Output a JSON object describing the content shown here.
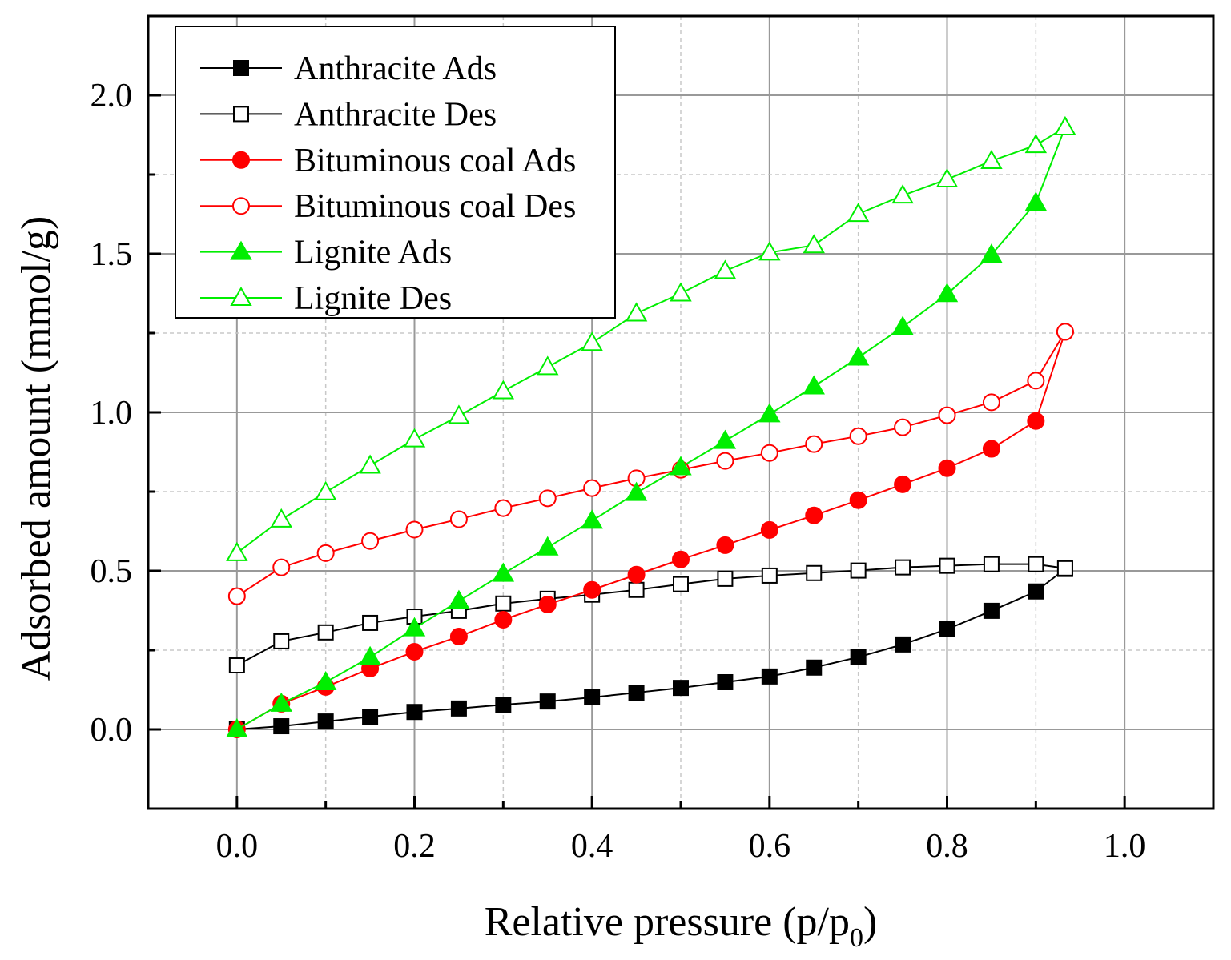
{
  "chart_data": {
    "type": "line",
    "title": "",
    "xlabel": "Relative pressure (p/p",
    "xlabel_sub": "0",
    "xlabel_end": ")",
    "ylabel": "Adsorbed amount (mmol/g)",
    "xlim": [
      -0.1,
      1.1
    ],
    "ylim": [
      -0.25,
      2.25
    ],
    "xticks": [
      0.0,
      0.2,
      0.4,
      0.6,
      0.8,
      1.0
    ],
    "xtick_labels": [
      "0.0",
      "0.2",
      "0.4",
      "0.6",
      "0.8",
      "1.0"
    ],
    "yticks": [
      0.0,
      0.5,
      1.0,
      1.5,
      2.0
    ],
    "ytick_labels": [
      "0.0",
      "0.5",
      "1.0",
      "1.5",
      "2.0"
    ],
    "grid": true,
    "legend_position": "top-left",
    "x": [
      0,
      0.05,
      0.1,
      0.15,
      0.2,
      0.25,
      0.3,
      0.35,
      0.4,
      0.45,
      0.5,
      0.55,
      0.6,
      0.65,
      0.7,
      0.75,
      0.8,
      0.85,
      0.9,
      0.933
    ],
    "series": [
      {
        "name": "Anthracite Ads",
        "color": "#000000",
        "marker": "square",
        "filled": true,
        "values": [
          0,
          0.01,
          0.025,
          0.04,
          0.055,
          0.066,
          0.078,
          0.088,
          0.101,
          0.116,
          0.131,
          0.149,
          0.167,
          0.195,
          0.228,
          0.268,
          0.316,
          0.374,
          0.435,
          0.506
        ]
      },
      {
        "name": "Anthracite Des",
        "color": "#000000",
        "marker": "square",
        "filled": false,
        "values": [
          0.202,
          0.278,
          0.306,
          0.336,
          0.356,
          0.374,
          0.397,
          0.412,
          0.425,
          0.44,
          0.458,
          0.475,
          0.485,
          0.493,
          0.501,
          0.511,
          0.516,
          0.521,
          0.521,
          0.508
        ]
      },
      {
        "name": "Bituminous coal Ads",
        "color": "#ff0000",
        "marker": "circle",
        "filled": true,
        "values": [
          0,
          0.081,
          0.134,
          0.192,
          0.245,
          0.293,
          0.346,
          0.394,
          0.44,
          0.488,
          0.536,
          0.581,
          0.629,
          0.675,
          0.723,
          0.773,
          0.824,
          0.885,
          0.973,
          1.254
        ]
      },
      {
        "name": "Bituminous coal Des",
        "color": "#ff0000",
        "marker": "circle",
        "filled": false,
        "values": [
          0.42,
          0.511,
          0.556,
          0.594,
          0.63,
          0.663,
          0.698,
          0.729,
          0.761,
          0.792,
          0.819,
          0.847,
          0.872,
          0.9,
          0.925,
          0.953,
          0.991,
          1.032,
          1.1,
          1.254
        ]
      },
      {
        "name": "Lignite Ads",
        "color": "#00ee00",
        "marker": "triangle",
        "filled": true,
        "values": [
          0,
          0.081,
          0.149,
          0.228,
          0.319,
          0.405,
          0.491,
          0.574,
          0.658,
          0.746,
          0.827,
          0.91,
          0.994,
          1.082,
          1.173,
          1.269,
          1.373,
          1.497,
          1.661,
          1.899
        ]
      },
      {
        "name": "Lignite Des",
        "color": "#00ee00",
        "marker": "triangle",
        "filled": false,
        "values": [
          0.556,
          0.662,
          0.748,
          0.832,
          0.915,
          0.989,
          1.067,
          1.143,
          1.219,
          1.312,
          1.375,
          1.446,
          1.504,
          1.527,
          1.626,
          1.684,
          1.735,
          1.793,
          1.843,
          1.899
        ]
      }
    ]
  }
}
